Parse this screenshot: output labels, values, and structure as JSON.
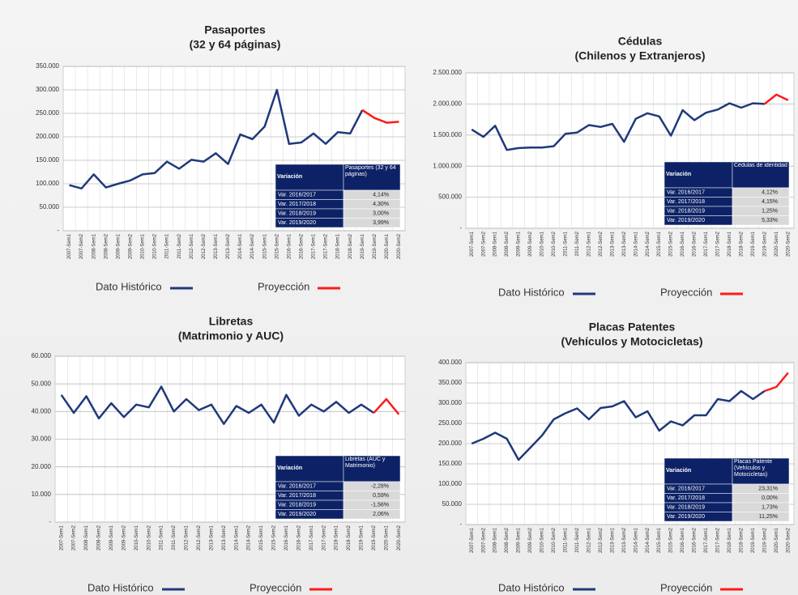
{
  "chart_data": [
    {
      "type": "line",
      "title": "Pasaportes",
      "subtitle": "(32 y 64 páginas)",
      "categories": [
        "2007-Sem1",
        "2007-Sem2",
        "2008-Sem1",
        "2008-Sem2",
        "2009-Sem1",
        "2009-Sem2",
        "2010-Sem1",
        "2010-Sem2",
        "2011-Sem1",
        "2011-Sem2",
        "2012-Sem1",
        "2012-Sem2",
        "2013-Sem1",
        "2013-Sem2",
        "2014-Sem1",
        "2014-Sem2",
        "2015-Sem1",
        "2015-Sem2",
        "2016-Sem1",
        "2016-Sem2",
        "2017-Sem1",
        "2017-Sem2",
        "2018-Sem1",
        "2018-Sem2",
        "2019-Sem1",
        "2019-Sem2",
        "2020-Sem1",
        "2020-Sem2"
      ],
      "series": [
        {
          "name": "Dato Histórico",
          "color": "#1f3a7a",
          "values": [
            97000,
            90000,
            120000,
            92000,
            100000,
            107000,
            120000,
            123000,
            147000,
            132000,
            151000,
            147000,
            165000,
            142000,
            205000,
            195000,
            222000,
            300000,
            185000,
            188000,
            207000,
            185000,
            210000,
            207000,
            257000,
            null,
            null,
            null
          ]
        },
        {
          "name": "Proyección",
          "color": "#ff1a1a",
          "values": [
            null,
            null,
            null,
            null,
            null,
            null,
            null,
            null,
            null,
            null,
            null,
            null,
            null,
            null,
            null,
            null,
            null,
            null,
            null,
            null,
            null,
            null,
            null,
            null,
            257000,
            240000,
            230000,
            232000
          ]
        }
      ],
      "ylim": [
        0,
        350000
      ],
      "yticks": [
        {
          "value": 0,
          "label": "-"
        },
        {
          "value": 50000,
          "label": "50.000"
        },
        {
          "value": 100000,
          "label": "100.000"
        },
        {
          "value": 150000,
          "label": "150.000"
        },
        {
          "value": 200000,
          "label": "200.000"
        },
        {
          "value": 250000,
          "label": "250.000"
        },
        {
          "value": 300000,
          "label": "300.000"
        },
        {
          "value": 350000,
          "label": "350.000"
        }
      ],
      "grid": true,
      "table": {
        "header": [
          "Variación",
          "Pasaportes (32 y 64 páginas)"
        ],
        "rows": [
          [
            "Var. 2016/2017",
            "4,14%"
          ],
          [
            "Var. 2017/2018",
            "4,30%"
          ],
          [
            "Var. 2018/2019",
            "3,00%"
          ],
          [
            "Var. 2019/2020",
            "3,99%"
          ]
        ]
      }
    },
    {
      "type": "line",
      "title": "Cédulas",
      "subtitle": "(Chilenos y Extranjeros)",
      "categories": [
        "2007-Sem1",
        "2007-Sem2",
        "2008-Sem1",
        "2008-Sem2",
        "2009-Sem1",
        "2009-Sem2",
        "2010-Sem1",
        "2010-Sem2",
        "2011-Sem1",
        "2011-Sem2",
        "2012-Sem1",
        "2012-Sem2",
        "2013-Sem1",
        "2013-Sem2",
        "2014-Sem1",
        "2014-Sem2",
        "2015-Sem1",
        "2015-Sem2",
        "2016-Sem1",
        "2016-Sem2",
        "2017-Sem1",
        "2017-Sem2",
        "2018-Sem1",
        "2018-Sem2",
        "2019-Sem1",
        "2019-Sem2",
        "2020-Sem1",
        "2020-Sem2"
      ],
      "series": [
        {
          "name": "Dato Histórico",
          "color": "#1f3a7a",
          "values": [
            1590000,
            1470000,
            1650000,
            1260000,
            1290000,
            1300000,
            1300000,
            1320000,
            1520000,
            1540000,
            1660000,
            1630000,
            1680000,
            1390000,
            1760000,
            1850000,
            1800000,
            1490000,
            1900000,
            1740000,
            1860000,
            1910000,
            2010000,
            1940000,
            2010000,
            2000000,
            null,
            null
          ]
        },
        {
          "name": "Proyección",
          "color": "#ff1a1a",
          "values": [
            null,
            null,
            null,
            null,
            null,
            null,
            null,
            null,
            null,
            null,
            null,
            null,
            null,
            null,
            null,
            null,
            null,
            null,
            null,
            null,
            null,
            null,
            null,
            null,
            null,
            2000000,
            2150000,
            2060000
          ]
        }
      ],
      "ylim": [
        0,
        2500000
      ],
      "yticks": [
        {
          "value": 0,
          "label": "-"
        },
        {
          "value": 500000,
          "label": "500.000"
        },
        {
          "value": 1000000,
          "label": "1.000.000"
        },
        {
          "value": 1500000,
          "label": "1.500.000"
        },
        {
          "value": 2000000,
          "label": "2.000.000"
        },
        {
          "value": 2500000,
          "label": "2.500.000"
        }
      ],
      "grid": true,
      "table": {
        "header": [
          "Variación",
          "Cédulas de identidad"
        ],
        "rows": [
          [
            "Var. 2016/2017",
            "4,12%"
          ],
          [
            "Var. 2017/2018",
            "4,15%"
          ],
          [
            "Var. 2018/2019",
            "1,25%"
          ],
          [
            "Var. 2019/2020",
            "5,33%"
          ]
        ]
      }
    },
    {
      "type": "line",
      "title": "Libretas",
      "subtitle": "(Matrimonio y AUC)",
      "categories": [
        "2007-Sem1",
        "2007-Sem2",
        "2008-Sem1",
        "2008-Sem2",
        "2009-Sem1",
        "2009-Sem2",
        "2010-Sem1",
        "2010-Sem2",
        "2011-Sem1",
        "2011-Sem2",
        "2012-Sem1",
        "2012-Sem2",
        "2013-Sem1",
        "2013-Sem2",
        "2014-Sem1",
        "2014-Sem2",
        "2015-Sem1",
        "2015-Sem2",
        "2016-Sem1",
        "2016-Sem2",
        "2017-Sem1",
        "2017-Sem2",
        "2018-Sem1",
        "2018-Sem2",
        "2019-Sem1",
        "2019-Sem2",
        "2020-Sem1",
        "2020-Sem2"
      ],
      "series": [
        {
          "name": "Dato Histórico",
          "color": "#1f3a7a",
          "values": [
            46000,
            39500,
            45500,
            37500,
            43000,
            38000,
            42500,
            41500,
            49000,
            40000,
            44500,
            40500,
            42500,
            35500,
            42000,
            39500,
            42500,
            36000,
            46000,
            38500,
            42500,
            40000,
            43500,
            39500,
            42500,
            39500,
            null,
            null
          ]
        },
        {
          "name": "Proyección",
          "color": "#ff1a1a",
          "values": [
            null,
            null,
            null,
            null,
            null,
            null,
            null,
            null,
            null,
            null,
            null,
            null,
            null,
            null,
            null,
            null,
            null,
            null,
            null,
            null,
            null,
            null,
            null,
            null,
            null,
            39500,
            44500,
            39000
          ]
        }
      ],
      "ylim": [
        0,
        60000
      ],
      "yticks": [
        {
          "value": 0,
          "label": "-"
        },
        {
          "value": 10000,
          "label": "10.000"
        },
        {
          "value": 20000,
          "label": "20.000"
        },
        {
          "value": 30000,
          "label": "30.000"
        },
        {
          "value": 40000,
          "label": "40.000"
        },
        {
          "value": 50000,
          "label": "50.000"
        },
        {
          "value": 60000,
          "label": "60.000"
        }
      ],
      "grid": true,
      "table": {
        "header": [
          "Variación",
          "Libretas (AUC y Matrimonio)"
        ],
        "rows": [
          [
            "Var. 2016/2017",
            "-2,28%"
          ],
          [
            "Var. 2017/2018",
            "0,59%"
          ],
          [
            "Var. 2018/2019",
            "-1,56%"
          ],
          [
            "Var. 2019/2020",
            "2,06%"
          ]
        ]
      }
    },
    {
      "type": "line",
      "title": "Placas Patentes",
      "subtitle": "(Vehículos y Motocicletas)",
      "categories": [
        "2007-Sem1",
        "2007-Sem2",
        "2008-Sem1",
        "2008-Sem2",
        "2009-Sem1",
        "2009-Sem2",
        "2010-Sem1",
        "2010-Sem2",
        "2011-Sem1",
        "2011-Sem2",
        "2012-Sem1",
        "2012-Sem2",
        "2013-Sem1",
        "2013-Sem2",
        "2014-Sem1",
        "2014-Sem2",
        "2015-Sem1",
        "2015-Sem2",
        "2016-Sem1",
        "2016-Sem2",
        "2017-Sem1",
        "2017-Sem2",
        "2018-Sem1",
        "2018-Sem2",
        "2019-Sem1",
        "2019-Sem2",
        "2020-Sem1",
        "2020-Sem2"
      ],
      "series": [
        {
          "name": "Dato Histórico",
          "color": "#1f3a7a",
          "values": [
            200000,
            212000,
            227000,
            212000,
            160000,
            190000,
            220000,
            260000,
            275000,
            287000,
            260000,
            288000,
            292000,
            305000,
            265000,
            280000,
            232000,
            255000,
            245000,
            270000,
            270000,
            310000,
            305000,
            330000,
            310000,
            330000,
            null,
            null
          ]
        },
        {
          "name": "Proyección",
          "color": "#ff1a1a",
          "values": [
            null,
            null,
            null,
            null,
            null,
            null,
            null,
            null,
            null,
            null,
            null,
            null,
            null,
            null,
            null,
            null,
            null,
            null,
            null,
            null,
            null,
            null,
            null,
            null,
            null,
            330000,
            340000,
            375000
          ]
        }
      ],
      "ylim": [
        0,
        400000
      ],
      "yticks": [
        {
          "value": 0,
          "label": "-"
        },
        {
          "value": 50000,
          "label": "50.000"
        },
        {
          "value": 100000,
          "label": "100.000"
        },
        {
          "value": 150000,
          "label": "150.000"
        },
        {
          "value": 200000,
          "label": "200.000"
        },
        {
          "value": 250000,
          "label": "250.000"
        },
        {
          "value": 300000,
          "label": "300.000"
        },
        {
          "value": 350000,
          "label": "350.000"
        },
        {
          "value": 400000,
          "label": "400.000"
        }
      ],
      "grid": true,
      "table": {
        "header": [
          "Variación",
          "Placas Patente (Vehículos y Motocicletas)"
        ],
        "rows": [
          [
            "Var. 2016/2017",
            "23,31%"
          ],
          [
            "Var. 2017/2018",
            "0,00%"
          ],
          [
            "Var. 2018/2019",
            "1,73%"
          ],
          [
            "Var. 2019/2020",
            "11,25%"
          ]
        ]
      }
    }
  ]
}
